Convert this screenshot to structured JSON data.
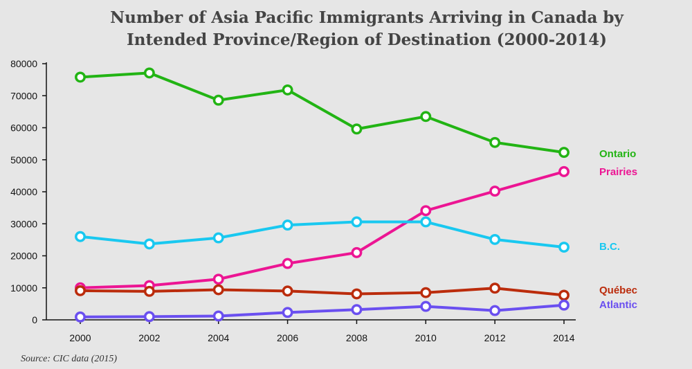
{
  "chart_data": {
    "type": "line",
    "title_lines": [
      "Number of Asia Pacific Immigrants Arriving in Canada by",
      "Intended Province/Region of Destination (2000-2014)"
    ],
    "x": [
      2000,
      2002,
      2004,
      2006,
      2008,
      2010,
      2012,
      2014
    ],
    "x_tick_labels": [
      "2000",
      "2002",
      "2004",
      "2006",
      "2008",
      "2010",
      "2012",
      "2014"
    ],
    "ylim": [
      0,
      80000
    ],
    "y_ticks": [
      0,
      10000,
      20000,
      30000,
      40000,
      50000,
      60000,
      70000,
      80000
    ],
    "y_tick_labels": [
      "0",
      "10000",
      "20000",
      "30000",
      "40000",
      "50000",
      "60000",
      "70000",
      "80000"
    ],
    "grid": false,
    "legend": "direct labels at the right end of each line",
    "series": [
      {
        "name": "Ontario",
        "color": "#22b414",
        "values": [
          75800,
          77100,
          68600,
          71800,
          59600,
          63500,
          55400,
          52300
        ]
      },
      {
        "name": "Prairies",
        "color": "#ec1593",
        "values": [
          10000,
          10700,
          12700,
          17600,
          21000,
          34100,
          40200,
          46300
        ]
      },
      {
        "name": "B.C.",
        "color": "#19c8f0",
        "values": [
          26000,
          23700,
          25600,
          29600,
          30600,
          30600,
          25100,
          22700
        ]
      },
      {
        "name": "Québec",
        "color": "#bb2c0c",
        "values": [
          9100,
          8900,
          9400,
          9000,
          8100,
          8500,
          9900,
          7700
        ]
      },
      {
        "name": "Atlantic",
        "color": "#6a4ff0",
        "values": [
          900,
          1000,
          1200,
          2300,
          3200,
          4200,
          2900,
          4600
        ]
      }
    ],
    "source": "Source: CIC data (2015)"
  }
}
